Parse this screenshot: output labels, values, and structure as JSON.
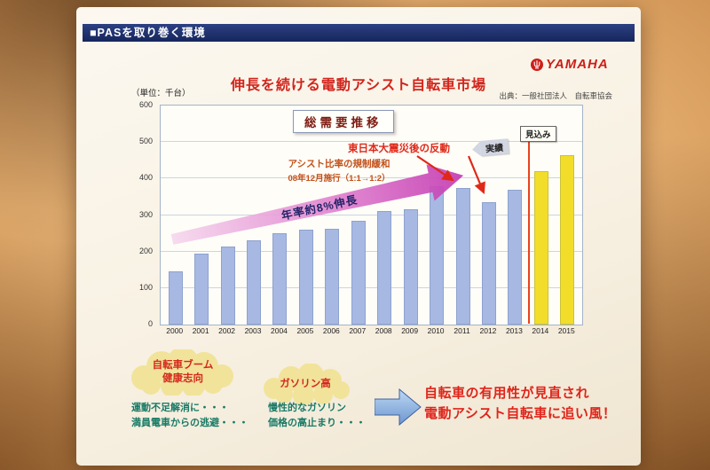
{
  "slide": {
    "header": "■PASを取り巻く環境",
    "brand": "YAMAHA",
    "title": "伸長を続ける電動アシスト自転車市場"
  },
  "chart_data": {
    "type": "bar",
    "title": "総需要推移",
    "unit_label": "（単位：千台）",
    "source": "出典：一般社団法人　自転車協会",
    "categories": [
      "2000",
      "2001",
      "2002",
      "2003",
      "2004",
      "2005",
      "2006",
      "2007",
      "2008",
      "2009",
      "2010",
      "2011",
      "2012",
      "2013",
      "2014",
      "2015"
    ],
    "values": [
      145,
      195,
      215,
      230,
      250,
      260,
      262,
      285,
      310,
      315,
      380,
      375,
      335,
      370,
      420,
      465
    ],
    "ylim": [
      0,
      600
    ],
    "y_ticks": [
      600,
      500,
      400,
      300,
      200,
      100,
      0
    ],
    "forecast_start_index": 14,
    "colors": {
      "actual": "#a7b9e3",
      "forecast": "#f2de2a",
      "forecast_divider": "#e8431c"
    },
    "legend": {
      "actual": "実績",
      "forecast": "見込み"
    },
    "annotations": {
      "quake_note": "東日本大震災後の反動",
      "regulation_line1": "アシスト比率の規制緩和",
      "regulation_line2": "08年12月施行（1:1→1:2）",
      "growth_note": "年率約8%伸長"
    }
  },
  "footer": {
    "cloud1_line1": "自転車ブーム",
    "cloud1_line2": "健康志向",
    "cloud2_line1": "ガソリン高",
    "cloud1_sub1": "運動不足解消に・・・",
    "cloud1_sub2": "満員電車からの逃避・・・",
    "cloud2_sub1": "慢性的なガソリン",
    "cloud2_sub2": "価格の高止まり・・・",
    "conclusion_line1": "自転車の有用性が見直され",
    "conclusion_line2": "電動アシスト自転車に追い風！"
  }
}
